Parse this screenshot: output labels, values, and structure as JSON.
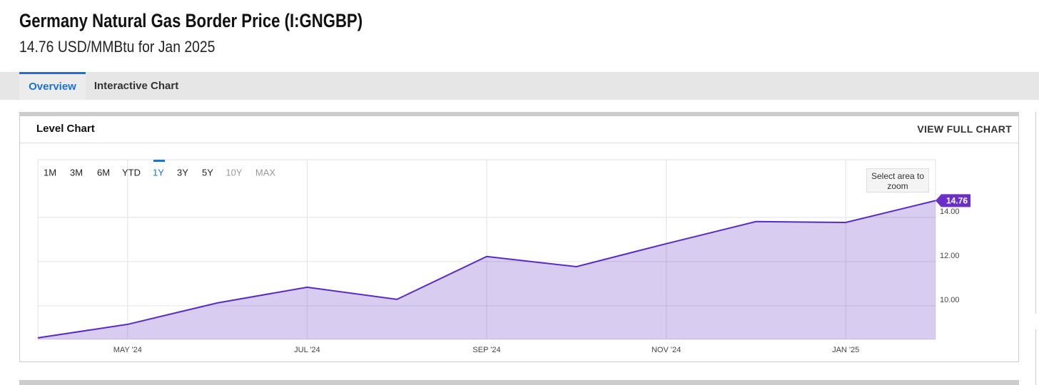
{
  "header": {
    "title": "Germany Natural Gas Border Price (I:GNGBP)",
    "subtitle": "14.76 USD/MMBtu for Jan 2025"
  },
  "tabs": [
    "Overview",
    "Interactive Chart"
  ],
  "panel": {
    "title": "Level Chart",
    "link": "VIEW FULL CHART"
  },
  "range_buttons": [
    "1M",
    "3M",
    "6M",
    "YTD",
    "1Y",
    "3Y",
    "5Y",
    "10Y",
    "MAX"
  ],
  "zoom_hint": "Select area to zoom",
  "chart_data": {
    "type": "area",
    "categories": [
      null,
      "MAY '24",
      null,
      "JUL '24",
      null,
      "SEP '24",
      null,
      "NOV '24",
      null,
      "JAN '25",
      null
    ],
    "values": [
      8.55,
      9.16,
      10.13,
      10.84,
      10.29,
      12.23,
      11.77,
      12.81,
      13.81,
      13.77,
      14.76
    ],
    "color": "#5a2bc2",
    "ylim": [
      8.48,
      16.61
    ],
    "yticks": [
      {
        "value": 10,
        "label": "10.00"
      },
      {
        "value": 12,
        "label": "12.00"
      },
      {
        "value": 14,
        "label": "14.00"
      }
    ],
    "grid": true
  }
}
